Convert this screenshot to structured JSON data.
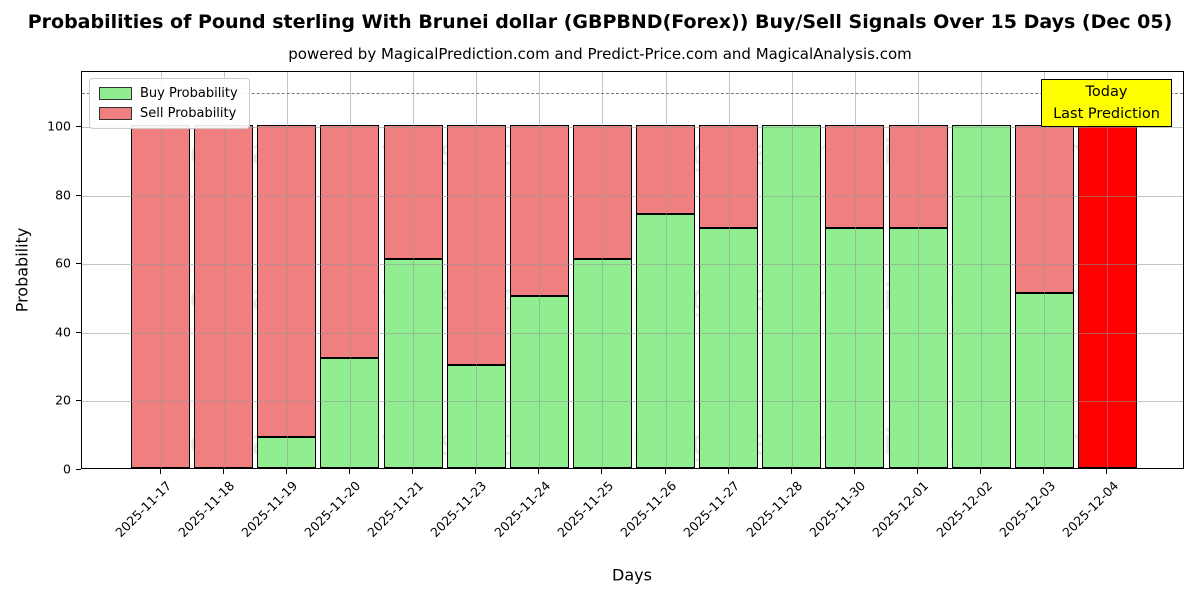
{
  "header": {
    "title": "Probabilities of Pound sterling With Brunei dollar (GBPBND(Forex)) Buy/Sell Signals Over 15 Days (Dec 05)",
    "subtitle": "powered by MagicalPrediction.com and Predict-Price.com and MagicalAnalysis.com"
  },
  "chart_data": {
    "type": "bar",
    "stacked": true,
    "title": "Probabilities of Pound sterling With Brunei dollar (GBPBND(Forex)) Buy/Sell Signals Over 15 Days (Dec 05)",
    "xlabel": "Days",
    "ylabel": "Probability",
    "ylim": [
      0,
      116
    ],
    "yticks": [
      0,
      20,
      40,
      60,
      80,
      100
    ],
    "grid": "on",
    "legend_position": "upper-left",
    "dashed_line_y": 110,
    "categories": [
      "2025-11-17",
      "2025-11-18",
      "2025-11-19",
      "2025-11-20",
      "2025-11-21",
      "2025-11-23",
      "2025-11-24",
      "2025-11-25",
      "2025-11-26",
      "2025-11-27",
      "2025-11-28",
      "2025-11-30",
      "2025-12-01",
      "2025-12-02",
      "2025-12-03",
      "2025-12-04"
    ],
    "series": [
      {
        "name": "Buy Probability",
        "color": "#90ee90",
        "values": [
          0,
          0,
          9,
          32,
          61,
          30,
          50,
          61,
          74,
          70,
          100,
          70,
          70,
          100,
          51,
          0
        ]
      },
      {
        "name": "Sell Probability",
        "color": "#f08080",
        "values": [
          100,
          100,
          91,
          68,
          39,
          70,
          50,
          39,
          26,
          30,
          0,
          30,
          30,
          0,
          49,
          100
        ]
      }
    ],
    "highlight": {
      "index": 15,
      "color": "#ff0000",
      "note": "last prediction bar drawn solid red"
    }
  },
  "legend": {
    "items": [
      {
        "label": "Buy Probability",
        "color": "#90ee90"
      },
      {
        "label": "Sell Probability",
        "color": "#f08080"
      }
    ]
  },
  "annotation_box": {
    "line1": "Today",
    "line2": "Last Prediction",
    "bg_color": "#ffff00"
  },
  "watermarks": {
    "left": "MagicalAnalysis.com",
    "right": "MagicalPrediction.com"
  },
  "colors": {
    "buy": "#90ee90",
    "sell": "#f08080",
    "highlight": "#ff0000",
    "grid": "#969696",
    "annotation_bg": "#ffff00"
  }
}
